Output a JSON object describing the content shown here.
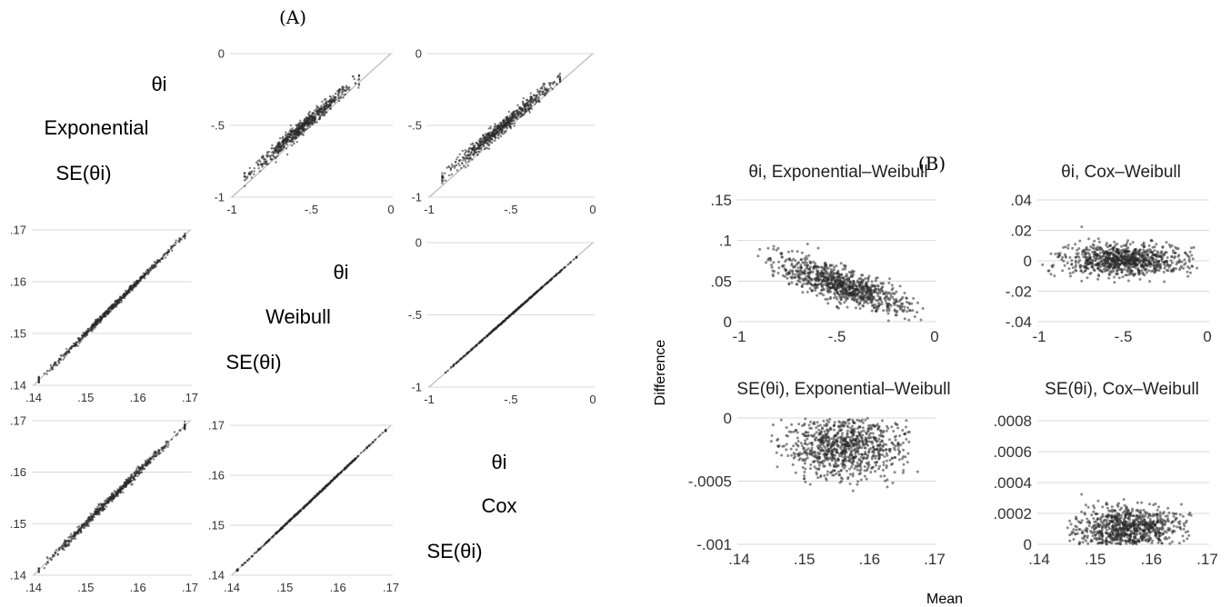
{
  "panel_a": {
    "label": "(A)",
    "diagonal": [
      {
        "theta": "θi",
        "model": "Exponential",
        "se": "SE(θi)"
      },
      {
        "theta": "θi",
        "model": "Weibull",
        "se": "SE(θi)"
      },
      {
        "theta": "θi",
        "model": "Cox",
        "se": "SE(θi)"
      }
    ]
  },
  "panel_b": {
    "label": "(B)",
    "ylabel": "Difference",
    "xlabel": "Mean"
  },
  "colors": {
    "point": "#2a2a2a",
    "grid": "#d8d8d8",
    "diagonal_line": "#bbbbbb"
  },
  "chart_data": [
    {
      "type": "scatter",
      "panel": "A",
      "row": 1,
      "col": 2,
      "description": "theta_i: Weibull (x) vs Exponential (y)",
      "xlim": [
        -1,
        0
      ],
      "ylim": [
        -1,
        0
      ],
      "x_ticks": [
        "-1",
        "-.5",
        "0"
      ],
      "y_ticks": [
        "-1",
        "-.5",
        "0"
      ],
      "grid": "horizontal",
      "reference_line": "y=x",
      "trend": {
        "x": [
          -0.92,
          -0.2
        ],
        "y": [
          -0.86,
          -0.17
        ]
      },
      "spread": 0.025,
      "n": 700
    },
    {
      "type": "scatter",
      "panel": "A",
      "row": 1,
      "col": 3,
      "description": "theta_i: Cox (x) vs Exponential (y)",
      "xlim": [
        -1,
        0
      ],
      "ylim": [
        -1,
        0
      ],
      "x_ticks": [
        "-1",
        "-.5",
        "0"
      ],
      "y_ticks": [
        "-1",
        "-.5",
        "0"
      ],
      "grid": "horizontal",
      "reference_line": "y=x",
      "trend": {
        "x": [
          -0.92,
          -0.2
        ],
        "y": [
          -0.86,
          -0.17
        ]
      },
      "spread": 0.025,
      "n": 700
    },
    {
      "type": "scatter",
      "panel": "A",
      "row": 2,
      "col": 1,
      "description": "SE(theta_i): Exponential (x) vs Weibull (y)",
      "xlim": [
        0.14,
        0.17
      ],
      "ylim": [
        0.14,
        0.17
      ],
      "x_ticks": [
        ".14",
        ".15",
        ".16",
        ".17"
      ],
      "y_ticks": [
        ".14",
        ".15",
        ".16",
        ".17"
      ],
      "grid": "horizontal",
      "reference_line": "y=x",
      "trend": {
        "x": [
          0.141,
          0.169
        ],
        "y": [
          0.141,
          0.169
        ]
      },
      "spread": 0.0003,
      "n": 600
    },
    {
      "type": "scatter",
      "panel": "A",
      "row": 2,
      "col": 3,
      "description": "theta_i: Cox (x) vs Weibull (y)",
      "xlim": [
        -1,
        0
      ],
      "ylim": [
        -1,
        0
      ],
      "x_ticks": [
        "-1",
        "-.5",
        "0"
      ],
      "y_ticks": [
        "-1",
        "-.5",
        "0"
      ],
      "grid": "horizontal",
      "reference_line": "y=x",
      "trend": {
        "x": [
          -0.9,
          -0.1
        ],
        "y": [
          -0.9,
          -0.1
        ]
      },
      "spread": 0.002,
      "n": 500
    },
    {
      "type": "scatter",
      "panel": "A",
      "row": 3,
      "col": 1,
      "description": "SE(theta_i): Exponential (x) vs Cox (y)",
      "xlim": [
        0.14,
        0.17
      ],
      "ylim": [
        0.14,
        0.17
      ],
      "x_ticks": [
        ".14",
        ".15",
        ".16",
        ".17"
      ],
      "y_ticks": [
        ".14",
        ".15",
        ".16",
        ".17"
      ],
      "grid": "horizontal",
      "reference_line": "y=x",
      "trend": {
        "x": [
          0.141,
          0.169
        ],
        "y": [
          0.141,
          0.169
        ]
      },
      "spread": 0.0004,
      "n": 600
    },
    {
      "type": "scatter",
      "panel": "A",
      "row": 3,
      "col": 2,
      "description": "SE(theta_i): Weibull (x) vs Cox (y)",
      "xlim": [
        0.14,
        0.17
      ],
      "ylim": [
        0.14,
        0.17
      ],
      "x_ticks": [
        ".14",
        ".15",
        ".16",
        ".17"
      ],
      "y_ticks": [
        ".14",
        ".15",
        ".16",
        ".17"
      ],
      "grid": "horizontal",
      "reference_line": "y=x",
      "trend": {
        "x": [
          0.141,
          0.169
        ],
        "y": [
          0.141,
          0.169
        ]
      },
      "spread": 8e-05,
      "n": 500
    },
    {
      "type": "scatter",
      "panel": "B",
      "row": 1,
      "col": 1,
      "title": "θi, Exponential–Weibull",
      "xlim": [
        -1,
        0
      ],
      "ylim": [
        0,
        0.15
      ],
      "x_ticks": [
        "-1",
        "-.5",
        "0"
      ],
      "y_ticks": [
        "0",
        ".05",
        ".1",
        ".15"
      ],
      "grid": "horizontal",
      "trend": {
        "x": [
          -0.85,
          -0.1
        ],
        "y": [
          0.075,
          0.015
        ]
      },
      "spread": 0.01,
      "n": 900
    },
    {
      "type": "scatter",
      "panel": "B",
      "row": 1,
      "col": 2,
      "title": "θi, Cox–Weibull",
      "xlim": [
        -1,
        0
      ],
      "ylim": [
        -0.04,
        0.04
      ],
      "x_ticks": [
        "-1",
        "-.5",
        "0"
      ],
      "y_ticks": [
        "-.04",
        "-.02",
        "0",
        ".02",
        ".04"
      ],
      "grid": "horizontal",
      "trend": {
        "x": [
          -0.9,
          -0.1
        ],
        "y": [
          0.001,
          0.0
        ]
      },
      "spread": 0.005,
      "n": 900
    },
    {
      "type": "scatter",
      "panel": "B",
      "row": 2,
      "col": 1,
      "title": "SE(θi), Exponential–Weibull",
      "xlim": [
        0.14,
        0.17
      ],
      "ylim": [
        -0.001,
        0
      ],
      "x_ticks": [
        ".14",
        ".15",
        ".16",
        ".17"
      ],
      "y_ticks": [
        "-.001",
        "-.0005",
        "0"
      ],
      "grid": "horizontal",
      "trend": {
        "x": [
          0.146,
          0.166
        ],
        "y": [
          -0.00022,
          -0.00022
        ]
      },
      "spread": 0.00012,
      "n": 900
    },
    {
      "type": "scatter",
      "panel": "B",
      "row": 2,
      "col": 2,
      "title": "SE(θi), Cox–Weibull",
      "xlim": [
        0.14,
        0.17
      ],
      "ylim": [
        0,
        0.0008
      ],
      "x_ticks": [
        ".14",
        ".15",
        ".16",
        ".17"
      ],
      "y_ticks": [
        "0",
        ".0002",
        ".0004",
        ".0006",
        ".0008"
      ],
      "grid": "horizontal",
      "trend": {
        "x": [
          0.146,
          0.166
        ],
        "y": [
          0.0001,
          0.0001
        ]
      },
      "spread": 7e-05,
      "n": 900
    }
  ]
}
